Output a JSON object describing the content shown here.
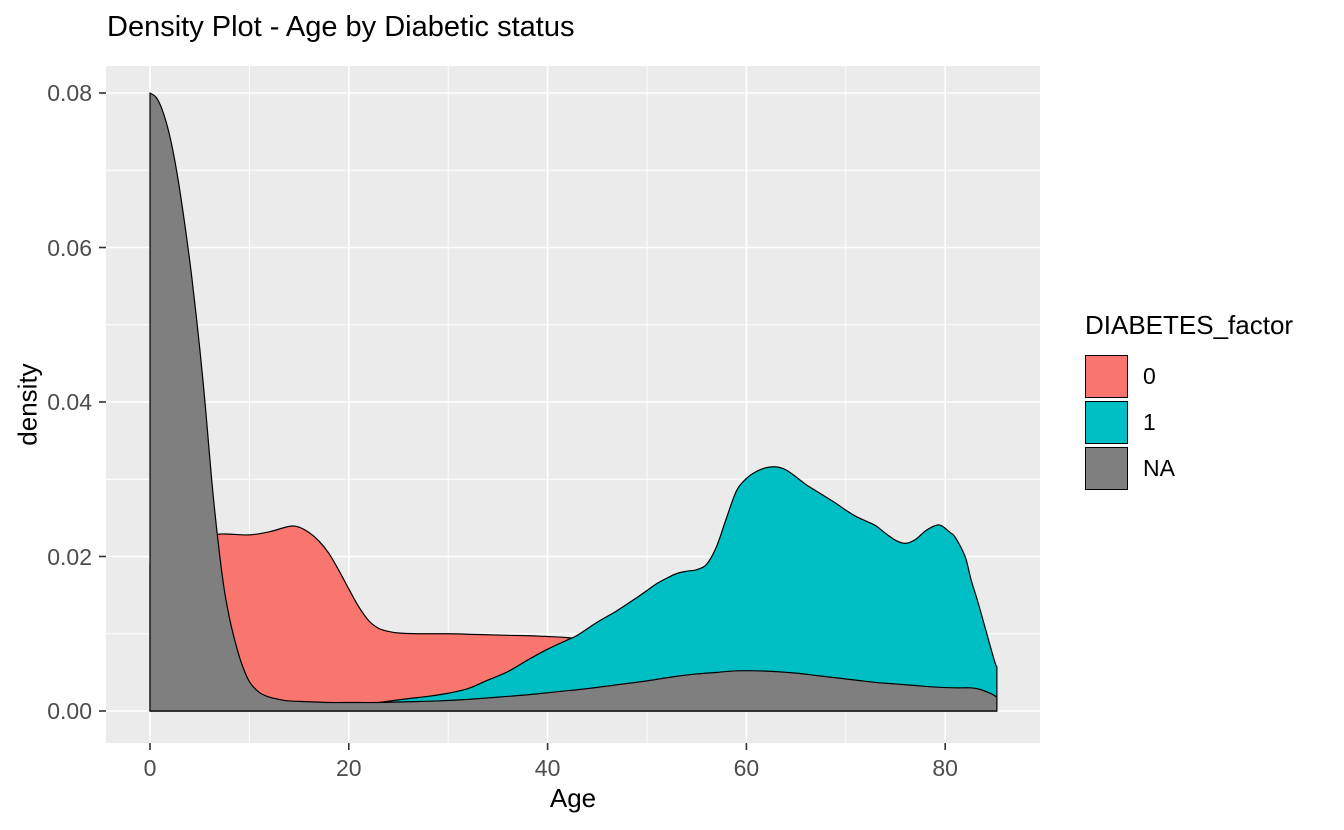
{
  "title": "Density Plot - Age by Diabetic status",
  "axes": {
    "x": {
      "label": "Age",
      "tick_labels": [
        "0",
        "20",
        "40",
        "60",
        "80"
      ],
      "tick_values": [
        0,
        20,
        40,
        60,
        80
      ],
      "minor_values": [
        10,
        30,
        50,
        70
      ]
    },
    "y": {
      "label": "density",
      "tick_labels": [
        "0.00",
        "0.02",
        "0.04",
        "0.06",
        "0.08"
      ],
      "tick_values": [
        0,
        0.02,
        0.04,
        0.06,
        0.08
      ],
      "minor_values": [
        0.01,
        0.03,
        0.05,
        0.07
      ]
    }
  },
  "legend": {
    "title": "DIABETES_factor",
    "position": "right",
    "items": [
      {
        "label": "0",
        "color": "#F8766D"
      },
      {
        "label": "1",
        "color": "#00BFC4"
      },
      {
        "label": "NA",
        "color": "#7F7F7F"
      }
    ]
  },
  "colors": {
    "panel_background": "#EBEBEB",
    "grid": "#FFFFFF",
    "outline": "#000000",
    "tick_marks": "#333333",
    "tick_labels": "#4D4D4D",
    "series_0": "#F8766D",
    "series_1": "#00BFC4",
    "series_na": "#7F7F7F"
  },
  "chart_data": {
    "type": "area",
    "title": "Density Plot - Age by Diabetic status",
    "xlabel": "Age",
    "ylabel": "density",
    "xlim": [
      -4.3,
      89.5
    ],
    "ylim": [
      -0.0042,
      0.0835
    ],
    "grid": true,
    "legend_title": "DIABETES_factor",
    "series": [
      {
        "name": "0",
        "color": "#F8766D",
        "points": [
          [
            0,
            0.019
          ],
          [
            2,
            0.02
          ],
          [
            4,
            0.0215
          ],
          [
            6,
            0.0226
          ],
          [
            7,
            0.0229
          ],
          [
            8,
            0.0229
          ],
          [
            10,
            0.0228
          ],
          [
            12,
            0.0232
          ],
          [
            14,
            0.0239
          ],
          [
            15,
            0.0238
          ],
          [
            16,
            0.0231
          ],
          [
            17,
            0.022
          ],
          [
            18,
            0.0204
          ],
          [
            19,
            0.0182
          ],
          [
            20,
            0.0158
          ],
          [
            21,
            0.0135
          ],
          [
            22,
            0.0117
          ],
          [
            23,
            0.0107
          ],
          [
            24,
            0.0103
          ],
          [
            25,
            0.0101
          ],
          [
            27,
            0.01
          ],
          [
            30,
            0.01
          ],
          [
            33,
            0.0099
          ],
          [
            36,
            0.0098
          ],
          [
            39,
            0.0097
          ],
          [
            42,
            0.0095
          ],
          [
            45,
            0.0091
          ],
          [
            48,
            0.0086
          ],
          [
            52,
            0.0079
          ],
          [
            56,
            0.007
          ],
          [
            60,
            0.006
          ],
          [
            65,
            0.0048
          ],
          [
            70,
            0.0036
          ],
          [
            75,
            0.0026
          ],
          [
            80,
            0.0016
          ],
          [
            83,
            0.001
          ],
          [
            85.2,
            0.0006
          ]
        ]
      },
      {
        "name": "1",
        "color": "#00BFC4",
        "points": [
          [
            0,
            0.0001
          ],
          [
            5,
            0.0001
          ],
          [
            10,
            0.0002
          ],
          [
            14,
            0.0003
          ],
          [
            18,
            0.0005
          ],
          [
            21,
            0.0007
          ],
          [
            23,
            0.0011
          ],
          [
            26,
            0.0016
          ],
          [
            28,
            0.0019
          ],
          [
            30,
            0.0023
          ],
          [
            32,
            0.0029
          ],
          [
            34,
            0.004
          ],
          [
            36,
            0.0051
          ],
          [
            38,
            0.0066
          ],
          [
            40,
            0.008
          ],
          [
            42,
            0.0092
          ],
          [
            43,
            0.0098
          ],
          [
            45,
            0.0115
          ],
          [
            47,
            0.013
          ],
          [
            49,
            0.0147
          ],
          [
            50,
            0.0156
          ],
          [
            51,
            0.0165
          ],
          [
            52,
            0.0172
          ],
          [
            53,
            0.0178
          ],
          [
            54,
            0.0181
          ],
          [
            55,
            0.0183
          ],
          [
            56,
            0.019
          ],
          [
            57,
            0.0213
          ],
          [
            58,
            0.025
          ],
          [
            59,
            0.0285
          ],
          [
            60,
            0.0301
          ],
          [
            61,
            0.031
          ],
          [
            62,
            0.0315
          ],
          [
            63,
            0.0316
          ],
          [
            64,
            0.0312
          ],
          [
            65,
            0.0303
          ],
          [
            66,
            0.0293
          ],
          [
            67,
            0.0285
          ],
          [
            68,
            0.0277
          ],
          [
            69,
            0.0269
          ],
          [
            70,
            0.026
          ],
          [
            71,
            0.0252
          ],
          [
            72,
            0.0246
          ],
          [
            73,
            0.024
          ],
          [
            74,
            0.023
          ],
          [
            75,
            0.0221
          ],
          [
            76,
            0.0217
          ],
          [
            77,
            0.0222
          ],
          [
            78,
            0.0233
          ],
          [
            79,
            0.024
          ],
          [
            79.6,
            0.024
          ],
          [
            80.5,
            0.0231
          ],
          [
            81,
            0.0225
          ],
          [
            82,
            0.02
          ],
          [
            82.6,
            0.017
          ],
          [
            83.2,
            0.0145
          ],
          [
            83.8,
            0.0118
          ],
          [
            84.4,
            0.009
          ],
          [
            85,
            0.0063
          ],
          [
            85.2,
            0.0057
          ]
        ]
      },
      {
        "name": "NA",
        "color": "#7F7F7F",
        "points": [
          [
            0,
            0.08
          ],
          [
            0.7,
            0.0793
          ],
          [
            1.4,
            0.0772
          ],
          [
            2.1,
            0.0738
          ],
          [
            2.8,
            0.069
          ],
          [
            3.5,
            0.063
          ],
          [
            4.2,
            0.0562
          ],
          [
            5,
            0.047
          ],
          [
            5.6,
            0.039
          ],
          [
            6.2,
            0.03
          ],
          [
            6.8,
            0.0225
          ],
          [
            7.4,
            0.0163
          ],
          [
            8,
            0.012
          ],
          [
            8.6,
            0.0088
          ],
          [
            9.2,
            0.0062
          ],
          [
            10,
            0.0038
          ],
          [
            11,
            0.0024
          ],
          [
            12,
            0.0018
          ],
          [
            13,
            0.0015
          ],
          [
            14,
            0.0013
          ],
          [
            16,
            0.0012
          ],
          [
            18,
            0.0011
          ],
          [
            20,
            0.0011
          ],
          [
            23,
            0.0011
          ],
          [
            26,
            0.0012
          ],
          [
            29,
            0.0013
          ],
          [
            32,
            0.0015
          ],
          [
            35,
            0.0018
          ],
          [
            38,
            0.0021
          ],
          [
            41,
            0.0025
          ],
          [
            44,
            0.0029
          ],
          [
            47,
            0.0034
          ],
          [
            50,
            0.0039
          ],
          [
            53,
            0.0045
          ],
          [
            55,
            0.0048
          ],
          [
            57,
            0.005
          ],
          [
            59,
            0.0052
          ],
          [
            61,
            0.0052
          ],
          [
            63,
            0.0051
          ],
          [
            65,
            0.0049
          ],
          [
            67,
            0.0046
          ],
          [
            69,
            0.0043
          ],
          [
            71,
            0.004
          ],
          [
            73,
            0.0037
          ],
          [
            75,
            0.0035
          ],
          [
            77,
            0.0033
          ],
          [
            79,
            0.0031
          ],
          [
            81,
            0.003
          ],
          [
            82.5,
            0.003
          ],
          [
            83.5,
            0.0028
          ],
          [
            84.5,
            0.0023
          ],
          [
            85.2,
            0.0018
          ]
        ]
      }
    ]
  }
}
